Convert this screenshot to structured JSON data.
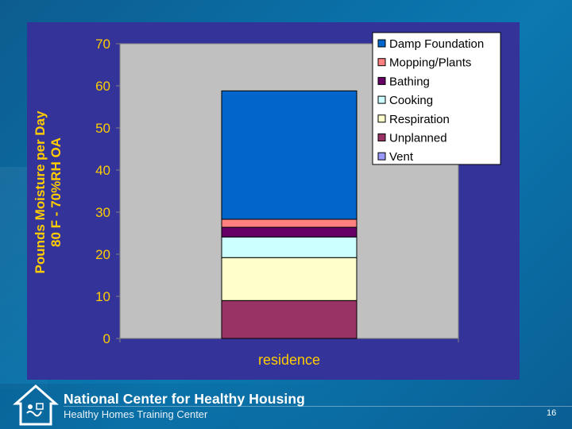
{
  "chart_data": {
    "type": "bar",
    "stacked": true,
    "categories": [
      "residence"
    ],
    "series": [
      {
        "name": "Vent",
        "values": [
          0
        ],
        "color": "#9999ff"
      },
      {
        "name": "Unplanned",
        "values": [
          9
        ],
        "color": "#993366"
      },
      {
        "name": "Respiration",
        "values": [
          10.2
        ],
        "color": "#ffffcc"
      },
      {
        "name": "Cooking",
        "values": [
          4.9
        ],
        "color": "#ccffff"
      },
      {
        "name": "Bathing",
        "values": [
          2.3
        ],
        "color": "#660066"
      },
      {
        "name": "Mopping/Plants",
        "values": [
          1.9
        ],
        "color": "#ff8080"
      },
      {
        "name": "Damp Foundation",
        "values": [
          30.5
        ],
        "color": "#0066cc"
      }
    ],
    "legend_order": [
      "Damp Foundation",
      "Mopping/Plants",
      "Bathing",
      "Cooking",
      "Respiration",
      "Unplanned",
      "Vent"
    ],
    "ylabel_line1": "Pounds Moisture per Day",
    "ylabel_line2": "80 F - 70%RH OA",
    "xlabel": "",
    "ylim": [
      0,
      70
    ],
    "yticks": [
      "0",
      "10",
      "20",
      "30",
      "40",
      "50",
      "60",
      "70"
    ],
    "grid": false,
    "legend_position": "top-right"
  },
  "footer": {
    "org_name": "National Center for Healthy Housing",
    "org_subtitle": "Healthy Homes Training Center",
    "page_number": "16"
  },
  "colors": {
    "panel": "#33339a",
    "plot_area": "#c0c0c0",
    "axis_text": "#ffcc00"
  }
}
